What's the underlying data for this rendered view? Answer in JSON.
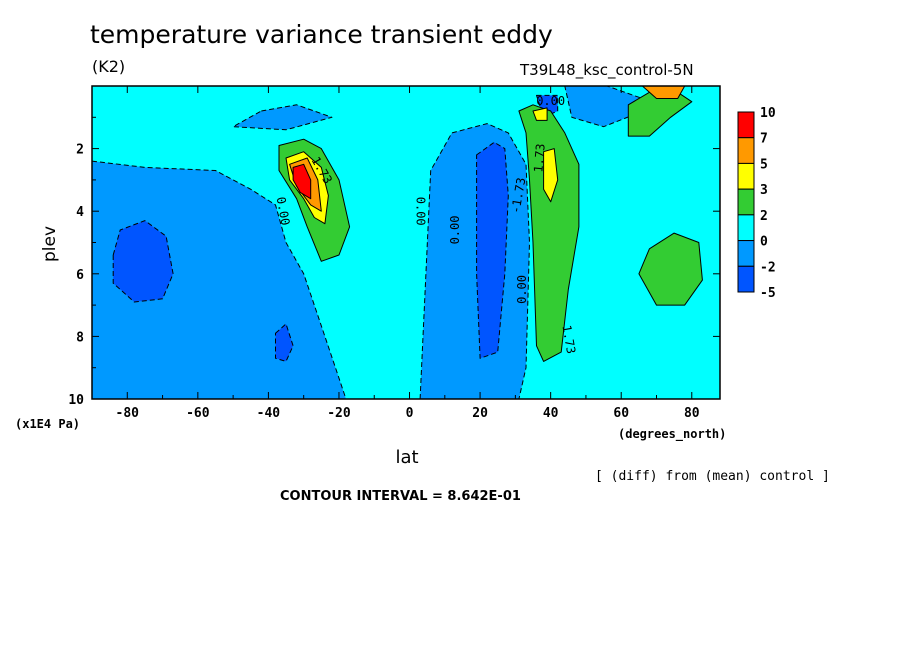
{
  "header": {
    "title": "temperature variance transient eddy",
    "units": "(K2)",
    "run_label": "T39L48_ksc_control-5N",
    "note": "[ (diff) from (mean) control ]",
    "contour_interval": "CONTOUR INTERVAL = 8.642E-01"
  },
  "chart_data": {
    "type": "heatmap",
    "title": "temperature variance transient eddy",
    "xlabel": "lat",
    "xunit_label": "(degrees_north)",
    "ylabel": "plev",
    "yunit_label": "(x1E4 Pa)",
    "xlim": [
      -90,
      88
    ],
    "ylim": [
      10,
      0
    ],
    "x_ticks": [
      -80,
      -60,
      -40,
      -20,
      0,
      20,
      40,
      60,
      80
    ],
    "y_ticks": [
      2,
      4,
      6,
      8,
      10
    ],
    "colorbar": {
      "labels": [
        "10",
        "7",
        "5",
        "3",
        "2",
        "0",
        "-2",
        "-5"
      ],
      "colors": [
        "#ff0000",
        "#ff9900",
        "#ffff00",
        "#33cc33",
        "#00ffff",
        "#0099ff",
        "#0055ff"
      ]
    },
    "contour_labels": [
      "1.73",
      "0.00",
      "0.00",
      "0.00",
      "-1.73",
      "1.73",
      "0.00",
      "1.73",
      "0.00"
    ],
    "regions": [
      {
        "level": "-2",
        "color": "#0099ff",
        "points": [
          [
            -90,
            2.4
          ],
          [
            -75,
            2.6
          ],
          [
            -55,
            2.7
          ],
          [
            -45,
            3.3
          ],
          [
            -38,
            3.8
          ],
          [
            -35,
            5
          ],
          [
            -30,
            6
          ],
          [
            -24,
            8
          ],
          [
            -18,
            10
          ],
          [
            -90,
            10
          ]
        ]
      },
      {
        "level": "-2",
        "color": "#0099ff",
        "points": [
          [
            -42,
            0.8
          ],
          [
            -32,
            0.6
          ],
          [
            -22,
            1.0
          ],
          [
            -35,
            1.4
          ],
          [
            -50,
            1.3
          ]
        ]
      },
      {
        "level": "-2",
        "color": "#0099ff",
        "points": [
          [
            3,
            10
          ],
          [
            6,
            2.7
          ],
          [
            12,
            1.5
          ],
          [
            22,
            1.2
          ],
          [
            28,
            1.5
          ],
          [
            33,
            2.5
          ],
          [
            34,
            5
          ],
          [
            33,
            9
          ],
          [
            31,
            10
          ]
        ]
      },
      {
        "level": "-2",
        "color": "#0099ff",
        "points": [
          [
            44,
            0.0
          ],
          [
            56,
            0.0
          ],
          [
            66,
            0.4
          ],
          [
            64,
            0.9
          ],
          [
            55,
            1.3
          ],
          [
            46,
            1.0
          ]
        ]
      },
      {
        "level": "-5",
        "color": "#0055ff",
        "points": [
          [
            -84,
            5.4
          ],
          [
            -82,
            4.6
          ],
          [
            -75,
            4.3
          ],
          [
            -69,
            4.8
          ],
          [
            -67,
            6.0
          ],
          [
            -70,
            6.8
          ],
          [
            -78,
            6.9
          ],
          [
            -84,
            6.3
          ]
        ]
      },
      {
        "level": "-5",
        "color": "#0055ff",
        "points": [
          [
            -38,
            7.9
          ],
          [
            -35,
            7.6
          ],
          [
            -33,
            8.3
          ],
          [
            -35,
            8.8
          ],
          [
            -38,
            8.7
          ]
        ]
      },
      {
        "level": "-5",
        "color": "#0055ff",
        "points": [
          [
            19,
            2.2
          ],
          [
            24,
            1.8
          ],
          [
            27,
            2.0
          ],
          [
            28,
            3.5
          ],
          [
            27,
            6
          ],
          [
            25,
            8.5
          ],
          [
            20,
            8.7
          ],
          [
            19,
            6
          ],
          [
            19,
            3.5
          ]
        ]
      },
      {
        "level": "-5",
        "color": "#0055ff",
        "points": [
          [
            36,
            0.3
          ],
          [
            42,
            0.3
          ],
          [
            42,
            0.8
          ],
          [
            38,
            1.0
          ]
        ]
      },
      {
        "level": "2",
        "color": "#33cc33",
        "points": [
          [
            -37,
            1.9
          ],
          [
            -30,
            1.7
          ],
          [
            -25,
            2.0
          ],
          [
            -20,
            3.0
          ],
          [
            -17,
            4.5
          ],
          [
            -20,
            5.4
          ],
          [
            -25,
            5.6
          ],
          [
            -29,
            4.5
          ],
          [
            -32,
            3.6
          ],
          [
            -37,
            2.7
          ]
        ]
      },
      {
        "level": "2",
        "color": "#33cc33",
        "points": [
          [
            31,
            0.8
          ],
          [
            35,
            0.6
          ],
          [
            40,
            0.8
          ],
          [
            44,
            1.5
          ],
          [
            48,
            2.5
          ],
          [
            48,
            4.5
          ],
          [
            45,
            6.5
          ],
          [
            43,
            8.5
          ],
          [
            38,
            8.8
          ],
          [
            36,
            8.3
          ],
          [
            35,
            5
          ],
          [
            34,
            3
          ],
          [
            33,
            1.5
          ]
        ]
      },
      {
        "level": "2",
        "color": "#33cc33",
        "points": [
          [
            62,
            0.6
          ],
          [
            68,
            0.2
          ],
          [
            76,
            0.2
          ],
          [
            80,
            0.5
          ],
          [
            74,
            1.0
          ],
          [
            68,
            1.6
          ],
          [
            62,
            1.6
          ]
        ]
      },
      {
        "level": "2",
        "color": "#33cc33",
        "points": [
          [
            65,
            6.0
          ],
          [
            68,
            5.2
          ],
          [
            75,
            4.7
          ],
          [
            82,
            5.0
          ],
          [
            83,
            6.2
          ],
          [
            78,
            7.0
          ],
          [
            70,
            7.0
          ]
        ]
      },
      {
        "level": "3",
        "color": "#ffff00",
        "points": [
          [
            -35,
            2.3
          ],
          [
            -30,
            2.1
          ],
          [
            -25,
            2.6
          ],
          [
            -23,
            3.5
          ],
          [
            -24,
            4.4
          ],
          [
            -27,
            4.2
          ],
          [
            -30,
            3.6
          ],
          [
            -34,
            3.0
          ]
        ]
      },
      {
        "level": "3",
        "color": "#ffff00",
        "points": [
          [
            38,
            2.1
          ],
          [
            41,
            2.0
          ],
          [
            42,
            3.0
          ],
          [
            40,
            3.7
          ],
          [
            38,
            3.3
          ]
        ]
      },
      {
        "level": "3",
        "color": "#ffff00",
        "points": [
          [
            35,
            0.8
          ],
          [
            39,
            0.7
          ],
          [
            39,
            1.1
          ],
          [
            36,
            1.1
          ]
        ]
      },
      {
        "level": "5",
        "color": "#ff9900",
        "points": [
          [
            -34,
            2.5
          ],
          [
            -29,
            2.3
          ],
          [
            -26,
            3.0
          ],
          [
            -25,
            4.0
          ],
          [
            -28,
            3.8
          ],
          [
            -32,
            3.2
          ]
        ]
      },
      {
        "level": "5",
        "color": "#ff9900",
        "points": [
          [
            66,
            0.0
          ],
          [
            78,
            0.0
          ],
          [
            76,
            0.4
          ],
          [
            70,
            0.4
          ]
        ]
      },
      {
        "level": "10",
        "color": "#ff0000",
        "points": [
          [
            -33,
            2.6
          ],
          [
            -30,
            2.5
          ],
          [
            -28,
            3.0
          ],
          [
            -28,
            3.6
          ],
          [
            -31,
            3.4
          ],
          [
            -33,
            3.0
          ]
        ]
      }
    ]
  }
}
